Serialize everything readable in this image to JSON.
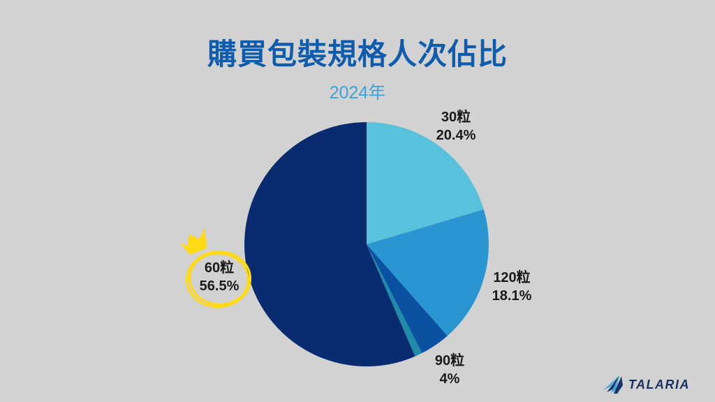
{
  "page": {
    "background_color": "#D2D2D2"
  },
  "header": {
    "title": "購買包裝規格人次佔比",
    "title_color": "#0E5CAD",
    "subtitle": "2024年",
    "subtitle_color": "#3BA2DB"
  },
  "chart_data": {
    "type": "pie",
    "title": "購買包裝規格人次佔比",
    "subtitle": "2024年",
    "start_angle_deg": 0,
    "direction": "clockwise",
    "legend_position": "none",
    "slices": [
      {
        "label": "30粒",
        "value": 20.4,
        "pct_label": "20.4%",
        "color": "#58C1DC"
      },
      {
        "label": "120粒",
        "value": 18.1,
        "pct_label": "18.1%",
        "color": "#2996D2"
      },
      {
        "label": "90粒",
        "value": 4,
        "pct_label": "4%",
        "color": "#0A51A1"
      },
      {
        "label": "",
        "value": 1,
        "pct_label": "",
        "color": "#1F8DA9"
      },
      {
        "label": "60粒",
        "value": 56.5,
        "pct_label": "56.5%",
        "color": "#092C70",
        "highlighted": true
      }
    ],
    "label_color": "#1A1A1A",
    "highlight": {
      "slice": "60粒",
      "annotation": "crown-and-hand-drawn-circle",
      "color": "#FFD913"
    }
  },
  "logo": {
    "text": "TALARIA",
    "text_color": "#1C3160",
    "icon_light_color": "#44A7DE",
    "icon_dark_color": "#1B3467"
  }
}
